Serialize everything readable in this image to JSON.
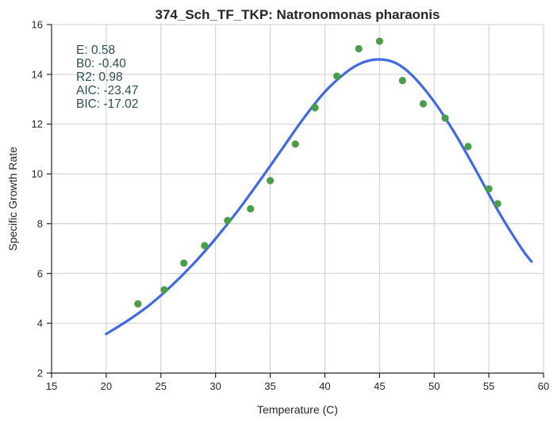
{
  "chart_data": {
    "type": "scatter",
    "title": "374_Sch_TF_TKP: Natronomonas pharaonis",
    "xlabel": "Temperature (C)",
    "ylabel": "Specific Growth Rate",
    "xlim": [
      15,
      60
    ],
    "ylim": [
      2,
      16
    ],
    "xticks": [
      15,
      20,
      25,
      30,
      35,
      40,
      45,
      50,
      55,
      60
    ],
    "yticks": [
      2,
      4,
      6,
      8,
      10,
      12,
      14,
      16
    ],
    "grid": true,
    "annotations": [
      "E:  0.58",
      "B0:  -0.40",
      "R2:  0.98",
      "AIC: -23.47",
      "BIC: -17.02"
    ],
    "colors": {
      "points": "#4a9e48",
      "fit": "#4169e1"
    },
    "points": [
      {
        "x": 22.9,
        "y": 4.78
      },
      {
        "x": 25.3,
        "y": 5.35
      },
      {
        "x": 27.1,
        "y": 6.42
      },
      {
        "x": 29.0,
        "y": 7.12
      },
      {
        "x": 31.1,
        "y": 8.13
      },
      {
        "x": 33.2,
        "y": 8.6
      },
      {
        "x": 35.0,
        "y": 9.73
      },
      {
        "x": 37.3,
        "y": 11.2
      },
      {
        "x": 39.1,
        "y": 12.66
      },
      {
        "x": 41.1,
        "y": 13.93
      },
      {
        "x": 43.1,
        "y": 15.03
      },
      {
        "x": 45.0,
        "y": 15.33
      },
      {
        "x": 47.1,
        "y": 13.75
      },
      {
        "x": 49.0,
        "y": 12.82
      },
      {
        "x": 51.0,
        "y": 12.24
      },
      {
        "x": 53.1,
        "y": 11.1
      },
      {
        "x": 55.0,
        "y": 9.4
      },
      {
        "x": 55.8,
        "y": 8.8
      }
    ],
    "fit_curve": [
      {
        "x": 20,
        "y": 3.57
      },
      {
        "x": 22,
        "y": 4.12
      },
      {
        "x": 24,
        "y": 4.75
      },
      {
        "x": 26,
        "y": 5.52
      },
      {
        "x": 28,
        "y": 6.4
      },
      {
        "x": 30,
        "y": 7.4
      },
      {
        "x": 32,
        "y": 8.5
      },
      {
        "x": 34,
        "y": 9.7
      },
      {
        "x": 36,
        "y": 10.95
      },
      {
        "x": 38,
        "y": 12.2
      },
      {
        "x": 40,
        "y": 13.3
      },
      {
        "x": 42,
        "y": 14.1
      },
      {
        "x": 43.5,
        "y": 14.48
      },
      {
        "x": 45,
        "y": 14.6
      },
      {
        "x": 46.5,
        "y": 14.45
      },
      {
        "x": 48,
        "y": 13.95
      },
      {
        "x": 50,
        "y": 12.9
      },
      {
        "x": 52,
        "y": 11.55
      },
      {
        "x": 54,
        "y": 10.0
      },
      {
        "x": 56,
        "y": 8.4
      },
      {
        "x": 58,
        "y": 7.0
      },
      {
        "x": 58.9,
        "y": 6.48
      }
    ]
  }
}
